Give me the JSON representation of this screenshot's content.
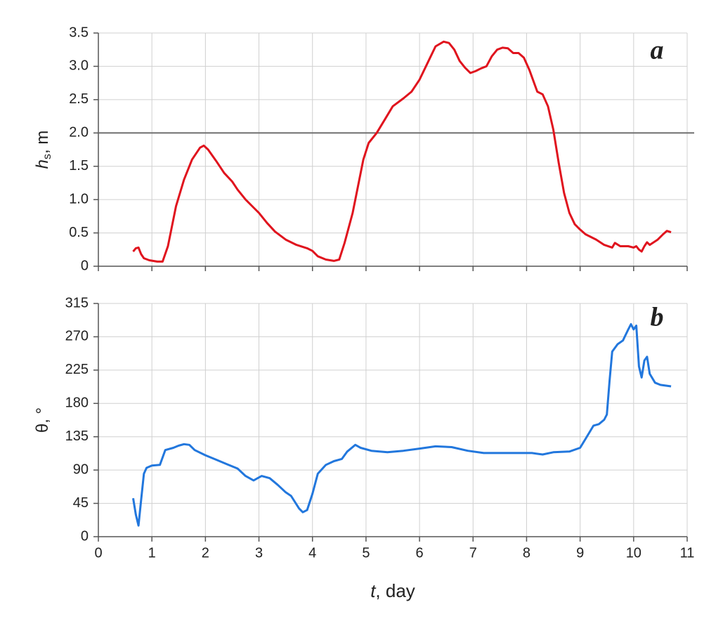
{
  "chart_data": [
    {
      "type": "line",
      "panel_label": "a",
      "ylabel_symbol": "h",
      "ylabel_subscript": "s",
      "ylabel_unit": ", m",
      "color": "#e0141e",
      "reference_line": 2,
      "reference_color": "#707070",
      "xlim": [
        0,
        11
      ],
      "xticks": [
        0,
        1,
        2,
        3,
        4,
        5,
        6,
        7,
        8,
        9,
        10,
        11
      ],
      "ylim": [
        0,
        3.5
      ],
      "yticks": [
        0,
        0.5,
        {
          "value": 1,
          "label": "1.0"
        },
        1.5,
        {
          "value": 2,
          "label": "2.0"
        },
        2.5,
        {
          "value": 3,
          "label": "3.0"
        },
        3.5
      ],
      "grid": true,
      "x": [
        0.65,
        0.7,
        0.75,
        0.8,
        0.85,
        0.95,
        1.1,
        1.2,
        1.3,
        1.45,
        1.6,
        1.75,
        1.9,
        1.97,
        2.05,
        2.2,
        2.35,
        2.5,
        2.6,
        2.75,
        2.9,
        3.0,
        3.15,
        3.3,
        3.5,
        3.7,
        3.9,
        4.0,
        4.1,
        4.25,
        4.4,
        4.5,
        4.6,
        4.75,
        4.85,
        4.95,
        5.05,
        5.2,
        5.35,
        5.5,
        5.7,
        5.85,
        6.0,
        6.15,
        6.3,
        6.45,
        6.55,
        6.65,
        6.75,
        6.85,
        6.95,
        7.05,
        7.15,
        7.25,
        7.35,
        7.45,
        7.55,
        7.65,
        7.75,
        7.85,
        7.95,
        8.05,
        8.2,
        8.3,
        8.4,
        8.5,
        8.6,
        8.7,
        8.8,
        8.9,
        9.0,
        9.1,
        9.3,
        9.45,
        9.6,
        9.65,
        9.75,
        9.9,
        10.0,
        10.05,
        10.1,
        10.15,
        10.2,
        10.25,
        10.3,
        10.45,
        10.55,
        10.62,
        10.7
      ],
      "values": [
        0.22,
        0.27,
        0.28,
        0.18,
        0.12,
        0.09,
        0.07,
        0.07,
        0.3,
        0.9,
        1.3,
        1.6,
        1.78,
        1.81,
        1.75,
        1.58,
        1.4,
        1.27,
        1.15,
        1.0,
        0.88,
        0.8,
        0.65,
        0.52,
        0.4,
        0.32,
        0.27,
        0.23,
        0.15,
        0.1,
        0.08,
        0.1,
        0.35,
        0.8,
        1.2,
        1.6,
        1.85,
        2.0,
        2.2,
        2.4,
        2.52,
        2.62,
        2.8,
        3.05,
        3.3,
        3.37,
        3.35,
        3.25,
        3.08,
        2.98,
        2.9,
        2.93,
        2.97,
        3.0,
        3.15,
        3.25,
        3.28,
        3.27,
        3.2,
        3.2,
        3.13,
        2.95,
        2.62,
        2.58,
        2.4,
        2.05,
        1.55,
        1.1,
        0.8,
        0.63,
        0.55,
        0.48,
        0.4,
        0.32,
        0.28,
        0.35,
        0.3,
        0.3,
        0.28,
        0.3,
        0.25,
        0.22,
        0.3,
        0.36,
        0.32,
        0.4,
        0.48,
        0.53,
        0.51
      ]
    },
    {
      "type": "line",
      "panel_label": "b",
      "ylabel_symbol": "θ",
      "ylabel_unit": ", °",
      "xlabel_symbol": "t",
      "xlabel_unit": ", day",
      "color": "#2277dd",
      "xlim": [
        0,
        11
      ],
      "xticks": [
        0,
        1,
        2,
        3,
        4,
        5,
        6,
        7,
        8,
        9,
        10,
        11
      ],
      "ylim": [
        0,
        315
      ],
      "yticks": [
        0,
        45,
        90,
        135,
        180,
        225,
        270,
        315
      ],
      "grid": true,
      "x": [
        0.65,
        0.7,
        0.75,
        0.8,
        0.85,
        0.9,
        1.0,
        1.15,
        1.25,
        1.4,
        1.5,
        1.6,
        1.7,
        1.8,
        2.0,
        2.2,
        2.4,
        2.6,
        2.75,
        2.9,
        3.0,
        3.05,
        3.2,
        3.35,
        3.5,
        3.6,
        3.75,
        3.82,
        3.9,
        4.0,
        4.1,
        4.25,
        4.4,
        4.55,
        4.65,
        4.8,
        4.9,
        5.1,
        5.4,
        5.7,
        6.0,
        6.3,
        6.6,
        6.9,
        7.2,
        7.5,
        7.8,
        8.1,
        8.3,
        8.5,
        8.8,
        9.0,
        9.1,
        9.25,
        9.35,
        9.45,
        9.5,
        9.55,
        9.6,
        9.7,
        9.8,
        9.9,
        9.95,
        10.0,
        10.05,
        10.1,
        10.15,
        10.2,
        10.25,
        10.3,
        10.4,
        10.5,
        10.7
      ],
      "values": [
        52,
        30,
        15,
        50,
        85,
        93,
        96,
        97,
        117,
        120,
        123,
        125,
        124,
        117,
        110,
        104,
        98,
        92,
        82,
        76,
        80,
        82,
        79,
        70,
        60,
        55,
        38,
        33,
        36,
        58,
        85,
        97,
        102,
        105,
        115,
        124,
        120,
        116,
        114,
        116,
        119,
        122,
        121,
        116,
        113,
        113,
        113,
        113,
        111,
        114,
        115,
        120,
        132,
        150,
        152,
        158,
        165,
        210,
        250,
        260,
        265,
        280,
        287,
        280,
        285,
        230,
        215,
        238,
        243,
        220,
        208,
        205,
        203
      ]
    }
  ]
}
